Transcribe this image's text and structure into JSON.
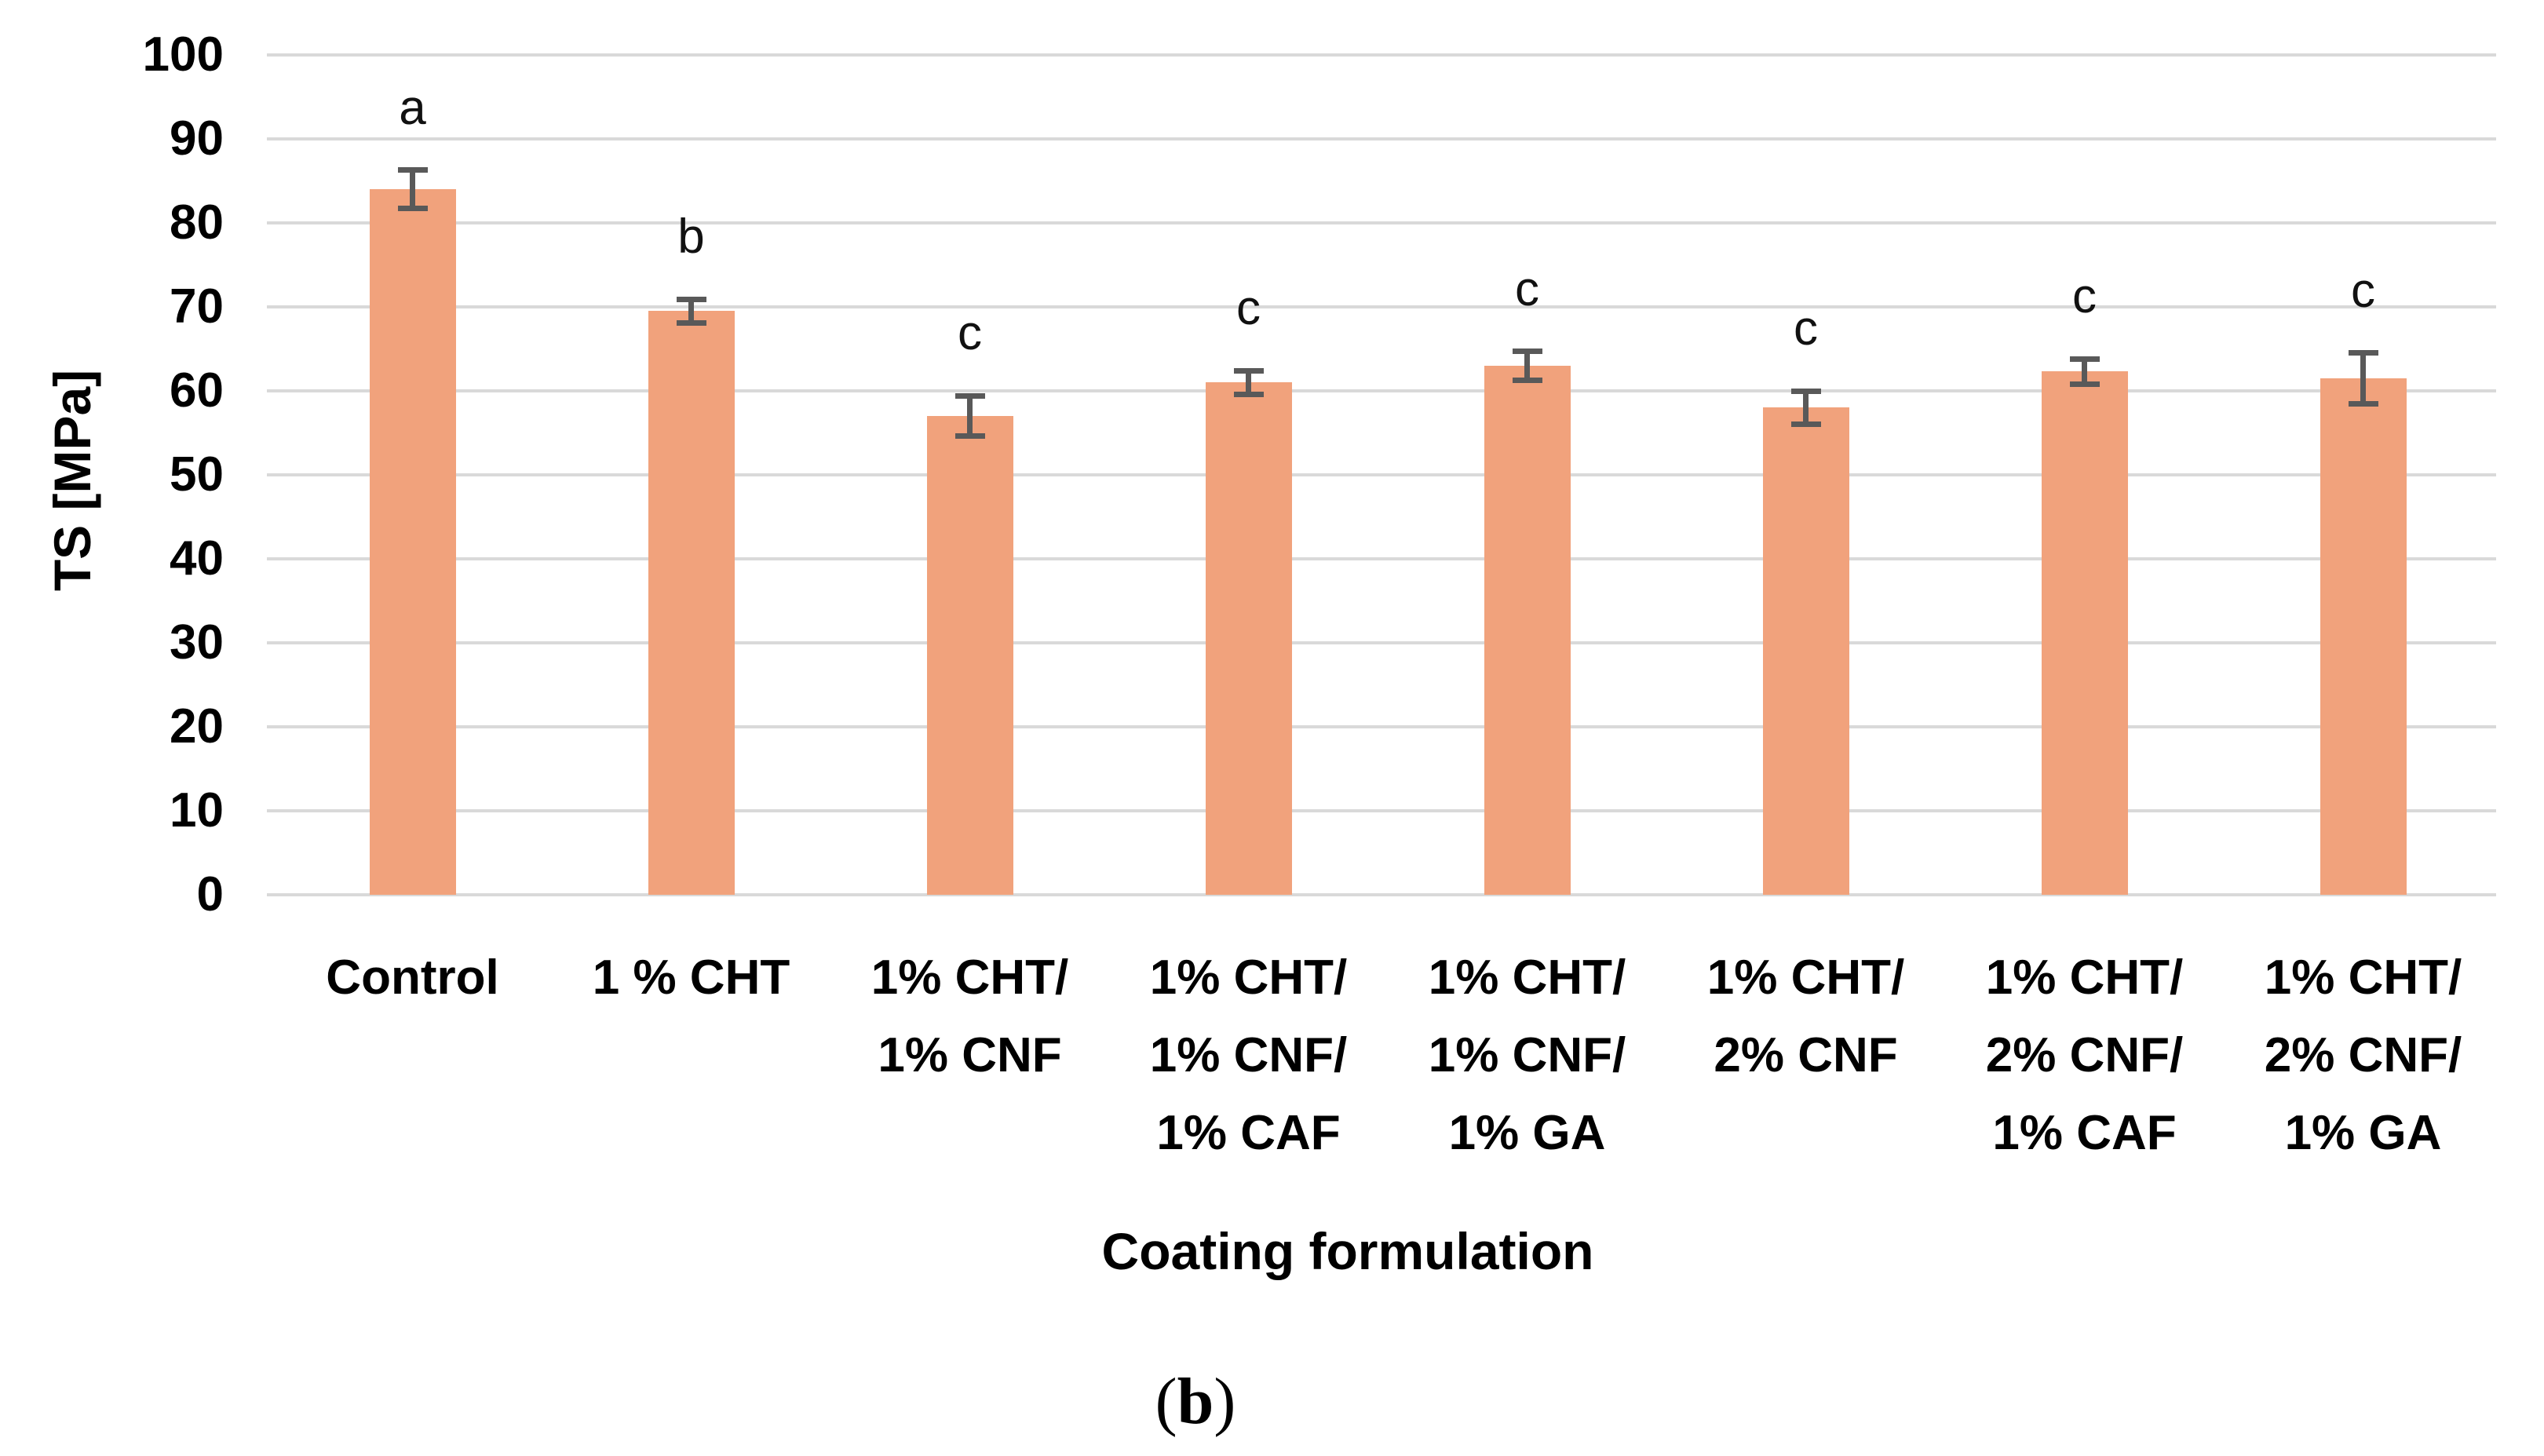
{
  "figure": {
    "caption_open": "(",
    "caption_letter": "b",
    "caption_close": ")"
  },
  "chart_data": {
    "type": "bar",
    "title": "",
    "xlabel": "Coating formulation",
    "ylabel": "TS [MPa]",
    "ylim": [
      0,
      100
    ],
    "ytick_step": 10,
    "grid": "horizontal",
    "legend_position": "none",
    "bar_color": "#F1A27C",
    "error_bar_color": "#595959",
    "gridline_color": "#D9D9D9",
    "categories": [
      "Control",
      "1 % CHT",
      "1% CHT/ 1% CNF",
      "1% CHT/ 1% CNF/ 1% CAF",
      "1% CHT/ 1% CNF/ 1% GA",
      "1% CHT/ 2% CNF",
      "1% CHT/ 2% CNF/ 1% CAF",
      "1% CHT/ 2% CNF/ 1% GA"
    ],
    "category_lines": [
      [
        "Control"
      ],
      [
        "1 % CHT"
      ],
      [
        "1% CHT/",
        "1% CNF"
      ],
      [
        "1% CHT/",
        "1% CNF/",
        "1% CAF"
      ],
      [
        "1% CHT/",
        "1% CNF/",
        "1% GA"
      ],
      [
        "1% CHT/",
        "2% CNF"
      ],
      [
        "1% CHT/",
        "2% CNF/",
        "1% CAF"
      ],
      [
        "1% CHT/",
        "2% CNF/",
        "1% GA"
      ]
    ],
    "values": [
      84,
      69.5,
      57,
      61,
      63,
      58,
      62.3,
      61.5
    ],
    "errors": [
      2.3,
      1.4,
      2.4,
      1.4,
      1.7,
      2.0,
      1.5,
      3.0
    ],
    "significance_letters": [
      "a",
      "b",
      "c",
      "c",
      "c",
      "c",
      "c",
      "c"
    ]
  }
}
